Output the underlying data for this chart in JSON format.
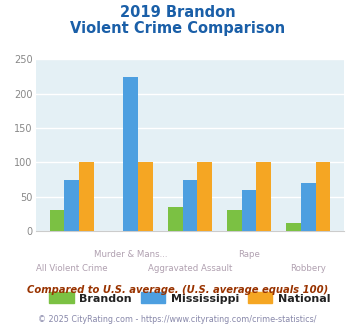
{
  "title_line1": "2019 Brandon",
  "title_line2": "Violent Crime Comparison",
  "categories": [
    "All Violent Crime",
    "Murder & Mans...",
    "Aggravated Assault",
    "Rape",
    "Robbery"
  ],
  "top_labels": [
    "",
    "Murder & Mans...",
    "",
    "Rape",
    ""
  ],
  "bottom_labels": [
    "All Violent Crime",
    "",
    "Aggravated Assault",
    "",
    "Robbery"
  ],
  "brandon": [
    30,
    0,
    35,
    30,
    11
  ],
  "mississippi": [
    74,
    224,
    75,
    60,
    70
  ],
  "national": [
    101,
    101,
    101,
    101,
    101
  ],
  "bar_colors": {
    "brandon": "#7bc143",
    "mississippi": "#4d9fe0",
    "national": "#f5a623"
  },
  "ylim": [
    0,
    250
  ],
  "yticks": [
    0,
    50,
    100,
    150,
    200,
    250
  ],
  "bg_color": "#e4f0f5",
  "title_color": "#1a5fa8",
  "xtick_color": "#b0a0b0",
  "footer_text": "Compared to U.S. average. (U.S. average equals 100)",
  "copyright_text": "© 2025 CityRating.com - https://www.cityrating.com/crime-statistics/",
  "footer_color": "#993300",
  "copyright_color": "#8888aa",
  "legend_labels": [
    "Brandon",
    "Mississippi",
    "National"
  ]
}
